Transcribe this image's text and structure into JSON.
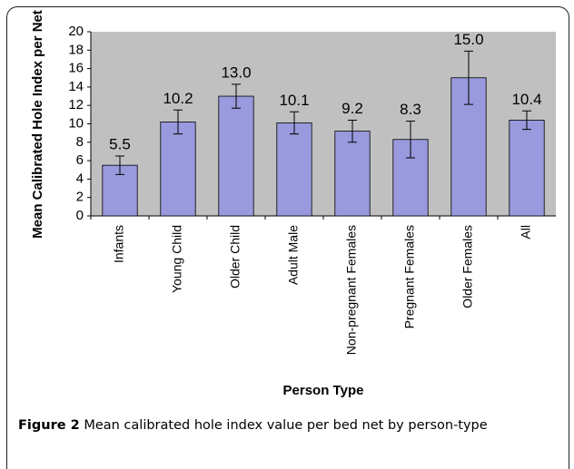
{
  "chart_data": {
    "type": "bar",
    "categories": [
      "Infants",
      "Young Child",
      "Older Child",
      "Adult Male",
      "Non-pregnant Females",
      "Pregnant Females",
      "Older Females",
      "All"
    ],
    "values": [
      5.5,
      10.2,
      13.0,
      10.1,
      9.2,
      8.3,
      15.0,
      10.4
    ],
    "value_labels": [
      "5.5",
      "10.2",
      "13.0",
      "10.1",
      "9.2",
      "8.3",
      "15.0",
      "10.4"
    ],
    "errors": [
      1.0,
      1.3,
      1.3,
      1.2,
      1.2,
      2.0,
      2.9,
      1.0
    ],
    "color": "#9999dd",
    "y_label": "Mean Calibrated Hole Index per Net",
    "x_label": "Person Type",
    "ylim": [
      0,
      20
    ],
    "yticks": [
      0,
      2,
      4,
      6,
      8,
      10,
      12,
      14,
      16,
      18,
      20
    ],
    "grid": false
  },
  "caption": {
    "label": "Figure 2",
    "text": "Mean calibrated hole index value per bed net by person-type"
  }
}
